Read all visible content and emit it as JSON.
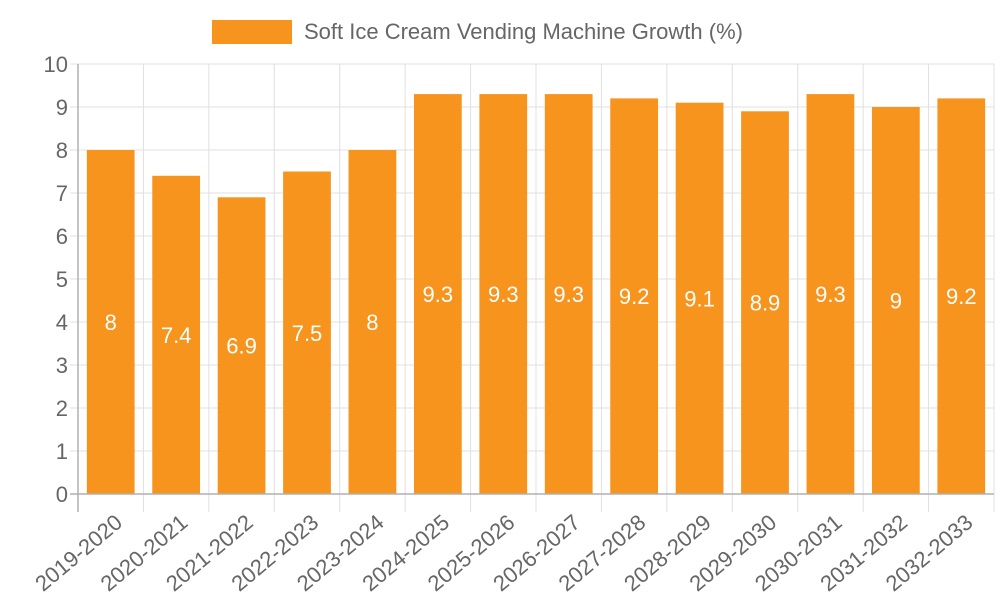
{
  "legend": {
    "label": "Soft Ice Cream Vending Machine Growth (%)",
    "color": "#f7941d"
  },
  "colors": {
    "bar": "#f7941d",
    "grid": "#e0e0e0",
    "axis": "#b0b0b0",
    "tick_text": "#666666",
    "data_label": "#ffffff"
  },
  "chart_data": {
    "type": "bar",
    "title": "",
    "xlabel": "",
    "ylabel": "",
    "ylim": [
      0,
      10
    ],
    "yticks": [
      0,
      1,
      2,
      3,
      4,
      5,
      6,
      7,
      8,
      9,
      10
    ],
    "grid": true,
    "legend_position": "top",
    "categories": [
      "2019-2020",
      "2020-2021",
      "2021-2022",
      "2022-2023",
      "2023-2024",
      "2024-2025",
      "2025-2026",
      "2026-2027",
      "2027-2028",
      "2028-2029",
      "2029-2030",
      "2030-2031",
      "2031-2032",
      "2032-2033"
    ],
    "series": [
      {
        "name": "Soft Ice Cream Vending Machine Growth (%)",
        "values": [
          8,
          7.4,
          6.9,
          7.5,
          8,
          9.3,
          9.3,
          9.3,
          9.2,
          9.1,
          8.9,
          9.3,
          9,
          9.2
        ]
      }
    ],
    "data_labels": [
      "8",
      "7.4",
      "6.9",
      "7.5",
      "8",
      "9.3",
      "9.3",
      "9.3",
      "9.2",
      "9.1",
      "8.9",
      "9.3",
      "9",
      "9.2"
    ]
  }
}
